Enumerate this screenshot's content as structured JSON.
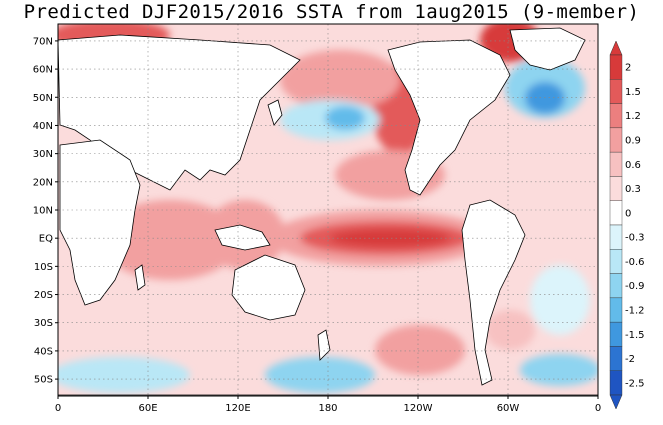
{
  "title": "Predicted DJF2015/2016 SSTA from 1aug2015 (9-member)",
  "map": {
    "lat_labels": [
      "70N",
      "60N",
      "50N",
      "40N",
      "30N",
      "20N",
      "10N",
      "EQ",
      "10S",
      "20S",
      "30S",
      "40S",
      "50S"
    ],
    "lat_values": [
      70,
      60,
      50,
      40,
      30,
      20,
      10,
      0,
      -10,
      -20,
      -30,
      -40,
      -50
    ],
    "lon_labels": [
      "0",
      "60E",
      "120E",
      "180",
      "120W",
      "60W",
      "0"
    ],
    "lon_values": [
      0,
      60,
      120,
      180,
      240,
      300,
      360
    ],
    "lat_range": [
      -56,
      76
    ],
    "lon_range": [
      0,
      360
    ],
    "grid": "dotted"
  },
  "colorbar": {
    "labels": [
      "2",
      "1.5",
      "1.2",
      "0.9",
      "0.6",
      "0.3",
      "0",
      "-0.3",
      "-0.6",
      "-0.9",
      "-1.2",
      "-1.5",
      "-2",
      "-2.5"
    ],
    "colors": [
      "#d73a3a",
      "#e35a5a",
      "#ec7f7f",
      "#f2a0a0",
      "#f7c1c1",
      "#fbdcdc",
      "#ffffff",
      "#dcf4fb",
      "#b9e7f6",
      "#8ed4f0",
      "#62bbea",
      "#3f98df",
      "#2c74d2",
      "#1f55c2"
    ]
  },
  "palette": {
    "land": "#ffffff",
    "coast": "#000000",
    "weak_warm": "#fbdcdc",
    "mid_warm": "#f2a0a0",
    "strong_warm": "#d73a3a",
    "weak_cool": "#b9e7f6",
    "mid_cool": "#62bbea",
    "strong_cool": "#3f98df"
  }
}
